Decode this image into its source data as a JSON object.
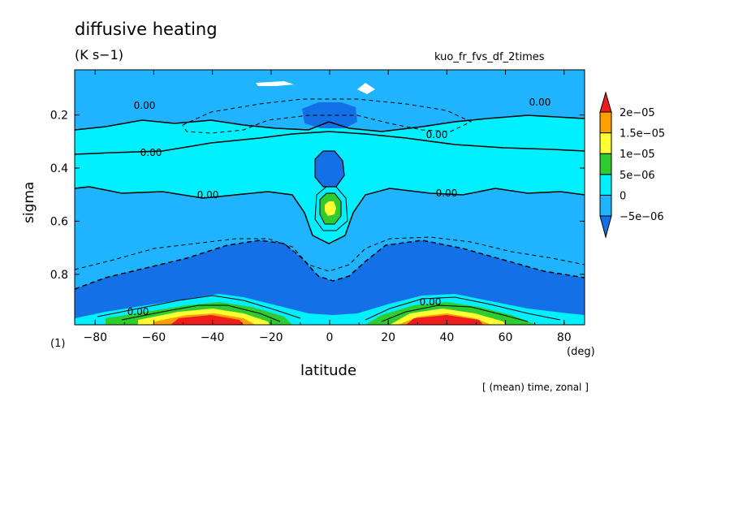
{
  "chart_data": {
    "type": "heatmap",
    "title": "diffusive heating",
    "units": "(K s−1)",
    "run_name": "kuo_fr_fvs_df_2times",
    "xlabel": "latitude",
    "xunit": "(deg)",
    "ylabel": "sigma",
    "figure_number": "(1)",
    "note": "[ (mean) time, zonal ]",
    "xlim": [
      -87,
      87
    ],
    "ylim": [
      0.03,
      0.99
    ],
    "y_reversed": true,
    "x_ticks": [
      -80,
      -60,
      -40,
      -20,
      0,
      20,
      40,
      60,
      80
    ],
    "x_tick_labels": [
      "−80",
      "−60",
      "−40",
      "−20",
      "0",
      "20",
      "40",
      "60",
      "80"
    ],
    "y_ticks": [
      0.2,
      0.4,
      0.6,
      0.8
    ],
    "y_tick_labels": [
      "0.2",
      "0.4",
      "0.6",
      "0.8"
    ],
    "contour_labels": [
      "0.00",
      "0.00",
      "0.00",
      "0.00",
      "0.00",
      "0.00",
      "0.00",
      "0.00"
    ],
    "colorbar": {
      "levels": [
        -5e-06,
        0,
        5e-06,
        1e-05,
        1.5e-05,
        2e-05
      ],
      "labels": [
        "−5e−06",
        "0",
        "5e−06",
        "1e−05",
        "1.5e−05",
        "2e−05"
      ],
      "colors": [
        "#1470e6",
        "#20b4ff",
        "#00f0ff",
        "#2ecc2e",
        "#ffff33",
        "#ff9f00",
        "#ee1c1c"
      ]
    },
    "grid": false
  }
}
